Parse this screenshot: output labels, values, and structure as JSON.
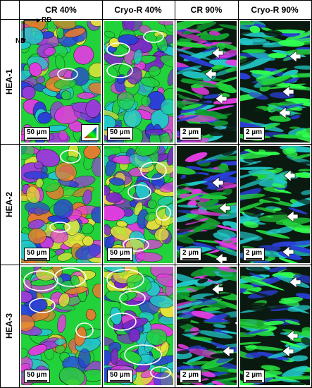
{
  "columns": [
    "CR 40%",
    "Cryo-R 40%",
    "CR 90%",
    "Cryo-R 90%"
  ],
  "rows": [
    "HEA-1",
    "HEA-2",
    "HEA-3"
  ],
  "axes": {
    "x": "RD",
    "y": "ND"
  },
  "scale_bars": [
    [
      "50 µm",
      "50 µm",
      "2 µm",
      "2 µm"
    ],
    [
      "50 µm",
      "50 µm",
      "2 µm",
      "2 µm"
    ],
    [
      "50 µm",
      "50 µm",
      "2 µm",
      "2 µm"
    ]
  ],
  "colors": {
    "green": "#22d23a",
    "magenta": "#e23ce0",
    "blue": "#2a3fd8",
    "cyan": "#22c8c8",
    "yellow": "#e4e43a",
    "dark": "#0a1a10"
  }
}
